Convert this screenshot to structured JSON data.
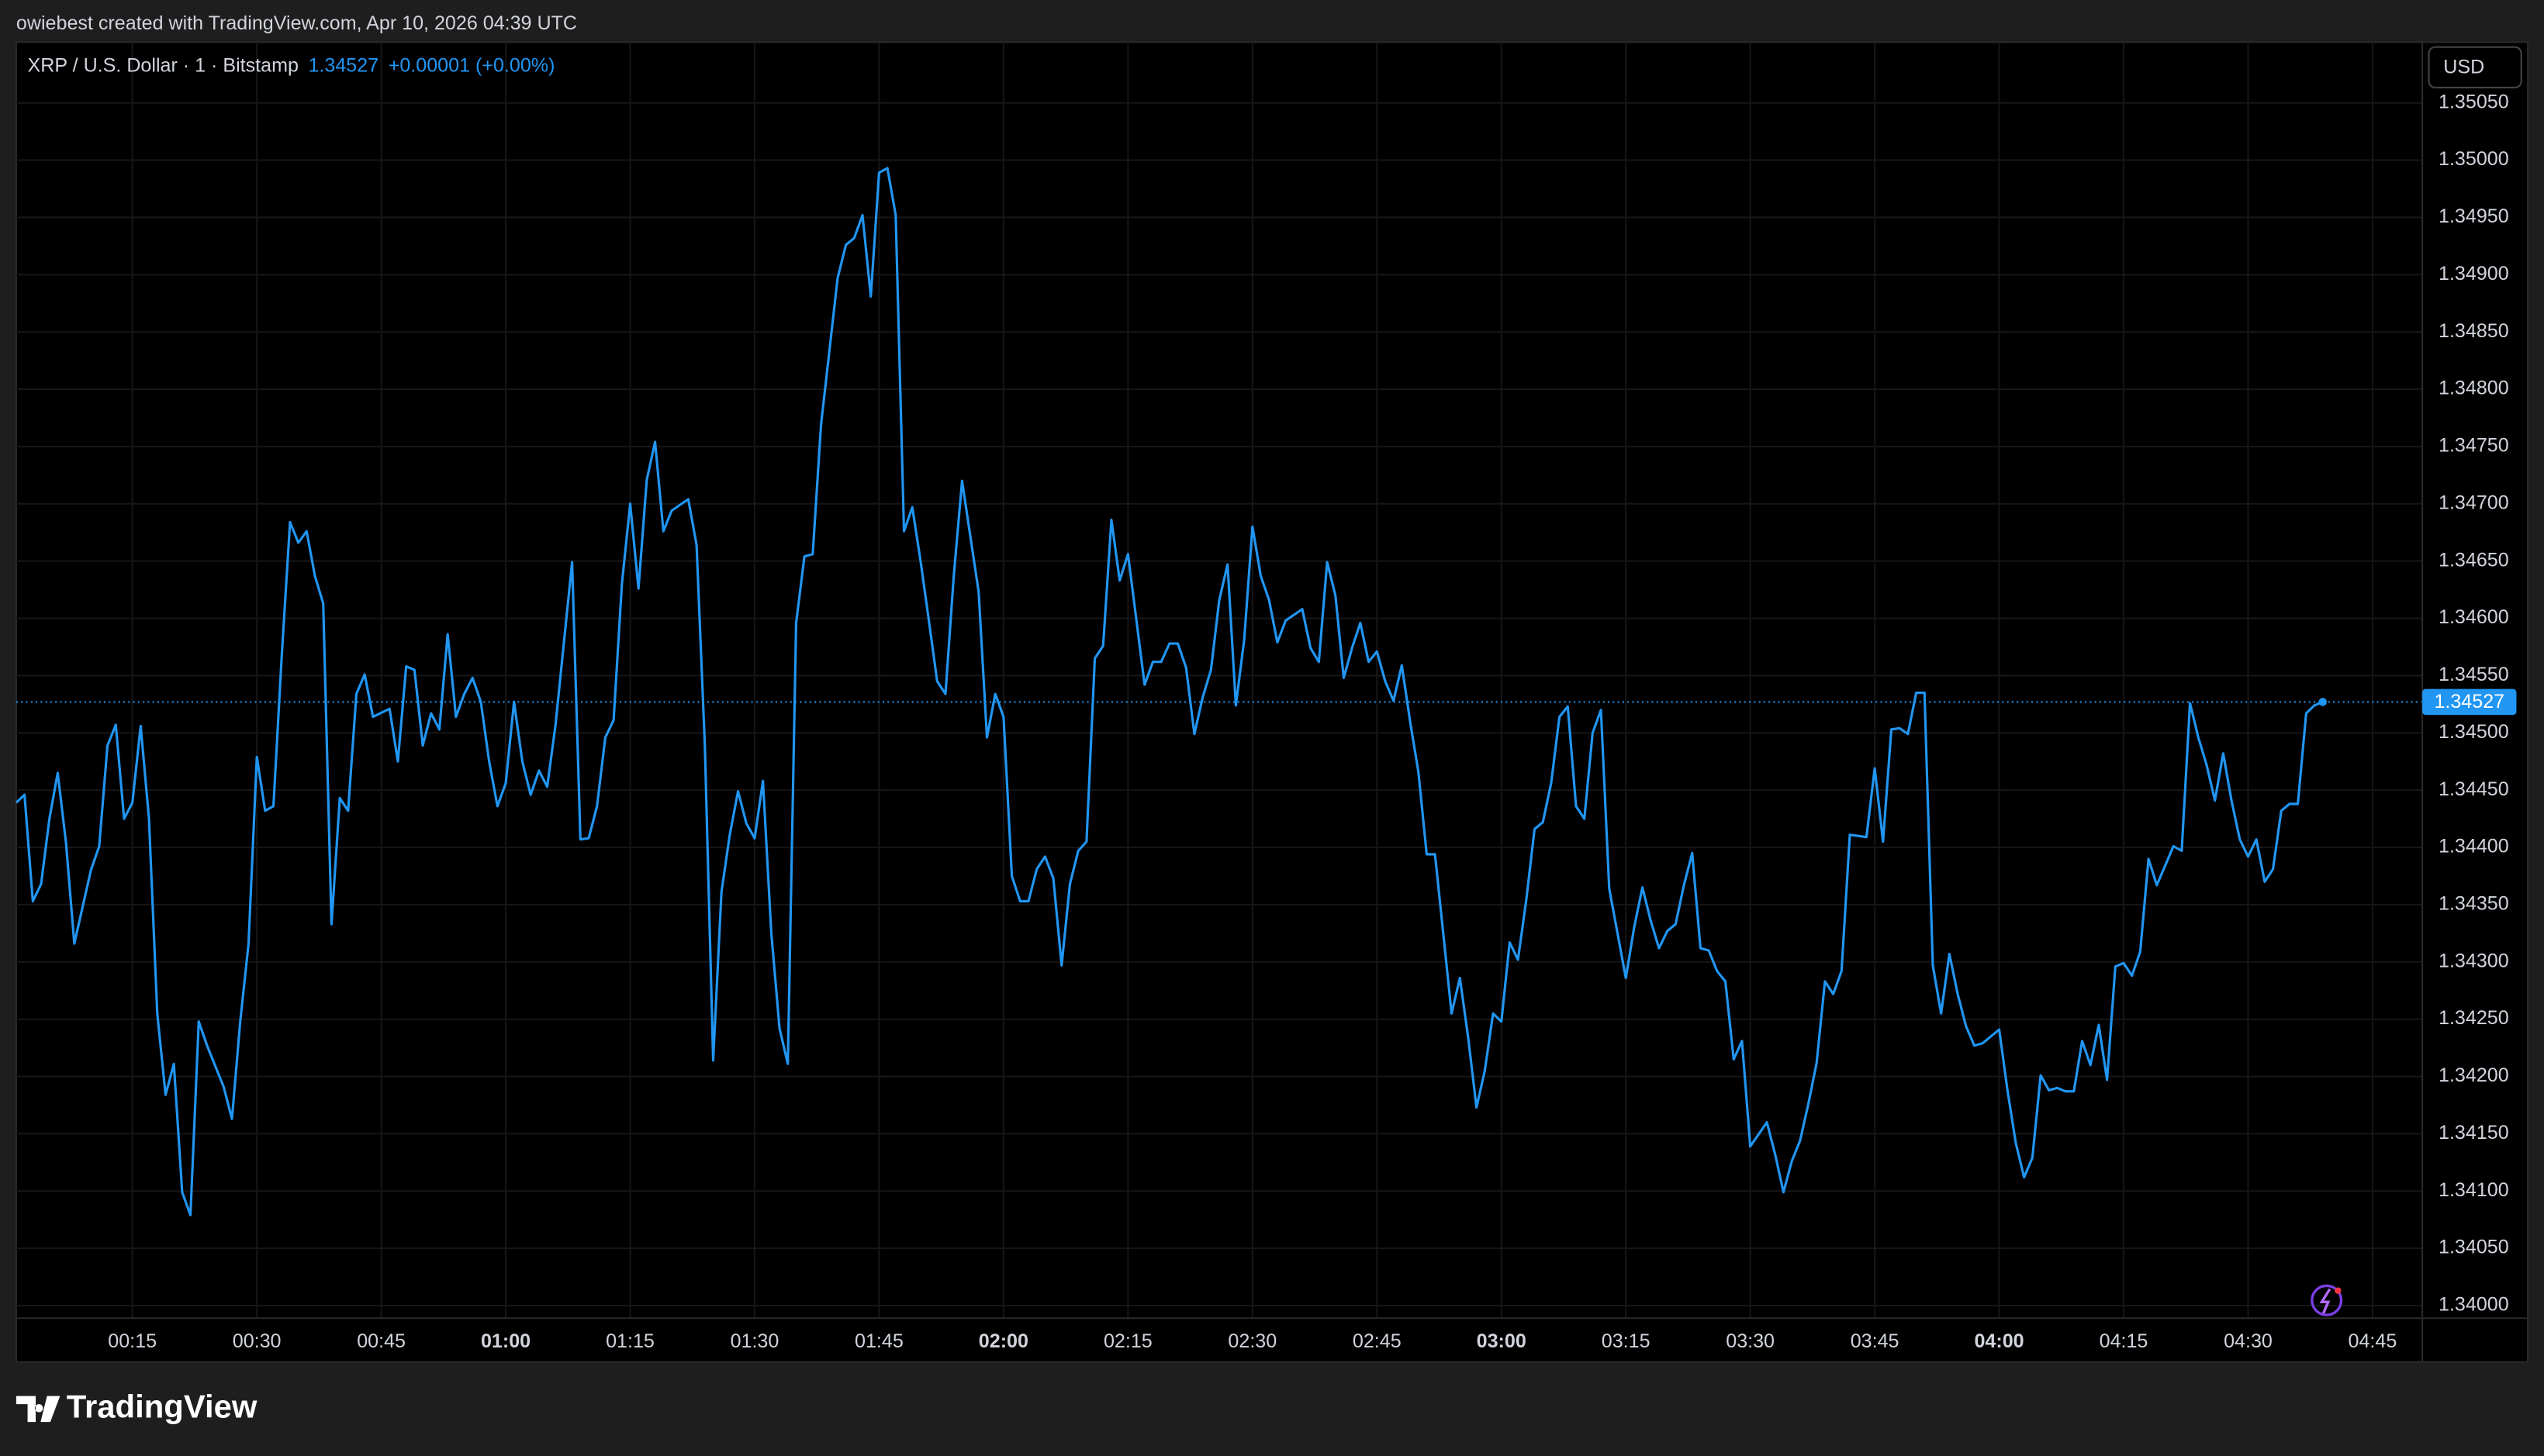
{
  "chart_data": {
    "type": "line",
    "caption": "owiebest created with TradingView.com, Apr 10, 2026 04:39 UTC",
    "currency": "USD",
    "change": "+0.00001 (+0.00%)",
    "brand": "TradingView",
    "grid": true,
    "xlim": [
      "00:01",
      "04:51"
    ],
    "xticks": [
      "00:15",
      "00:30",
      "00:45",
      "01:00",
      "01:15",
      "01:30",
      "01:45",
      "02:00",
      "02:15",
      "02:30",
      "02:45",
      "03:00",
      "03:15",
      "03:30",
      "03:45",
      "04:00",
      "04:15",
      "04:30",
      "04:45"
    ],
    "ylim": [
      1.33989,
      1.35103
    ],
    "yticks": [
      {
        "value": 1.34,
        "label": "1.34000"
      },
      {
        "value": 1.3405,
        "label": "1.34050"
      },
      {
        "value": 1.341,
        "label": "1.34100"
      },
      {
        "value": 1.3415,
        "label": "1.34150"
      },
      {
        "value": 1.342,
        "label": "1.34200"
      },
      {
        "value": 1.3425,
        "label": "1.34250"
      },
      {
        "value": 1.343,
        "label": "1.34300"
      },
      {
        "value": 1.3435,
        "label": "1.34350"
      },
      {
        "value": 1.344,
        "label": "1.34400"
      },
      {
        "value": 1.3445,
        "label": "1.34450"
      },
      {
        "value": 1.345,
        "label": "1.34500"
      },
      {
        "value": 1.3455,
        "label": "1.34550"
      },
      {
        "value": 1.346,
        "label": "1.34600"
      },
      {
        "value": 1.3465,
        "label": "1.34650"
      },
      {
        "value": 1.347,
        "label": "1.34700"
      },
      {
        "value": 1.3475,
        "label": "1.34750"
      },
      {
        "value": 1.348,
        "label": "1.34800"
      },
      {
        "value": 1.3485,
        "label": "1.34850"
      },
      {
        "value": 1.349,
        "label": "1.34900"
      },
      {
        "value": 1.3495,
        "label": "1.34950"
      },
      {
        "value": 1.35,
        "label": "1.35000"
      },
      {
        "value": 1.3505,
        "label": "1.35050"
      }
    ],
    "x": [
      "00:01",
      "00:02",
      "00:03",
      "00:04",
      "00:05",
      "00:06",
      "00:07",
      "00:08",
      "00:10",
      "00:11",
      "00:12",
      "00:13",
      "00:14",
      "00:15",
      "00:16",
      "00:17",
      "00:18",
      "00:19",
      "00:20",
      "00:21",
      "00:22",
      "00:23",
      "00:24",
      "00:26",
      "00:27",
      "00:28",
      "00:29",
      "00:30",
      "00:31",
      "00:32",
      "00:33",
      "00:34",
      "00:35",
      "00:36",
      "00:37",
      "00:38",
      "00:39",
      "00:40",
      "00:41",
      "00:42",
      "00:43",
      "00:44",
      "00:46",
      "00:47",
      "00:48",
      "00:49",
      "00:50",
      "00:51",
      "00:52",
      "00:53",
      "00:54",
      "00:55",
      "00:56",
      "00:57",
      "00:58",
      "00:59",
      "01:00",
      "01:01",
      "01:02",
      "01:03",
      "01:04",
      "01:05",
      "01:06",
      "01:08",
      "01:09",
      "01:10",
      "01:11",
      "01:12",
      "01:13",
      "01:14",
      "01:15",
      "01:16",
      "01:17",
      "01:18",
      "01:19",
      "01:20",
      "01:22",
      "01:23",
      "01:24",
      "01:25",
      "01:26",
      "01:27",
      "01:28",
      "01:29",
      "01:30",
      "01:31",
      "01:32",
      "01:33",
      "01:34",
      "01:35",
      "01:36",
      "01:37",
      "01:38",
      "01:40",
      "01:41",
      "01:42",
      "01:43",
      "01:44",
      "01:45",
      "01:46",
      "01:47",
      "01:48",
      "01:49",
      "01:50",
      "01:51",
      "01:52",
      "01:53",
      "01:54",
      "01:55",
      "01:57",
      "01:58",
      "01:59",
      "02:00",
      "02:01",
      "02:02",
      "02:03",
      "02:04",
      "02:05",
      "02:06",
      "02:07",
      "02:08",
      "02:09",
      "02:10",
      "02:11",
      "02:12",
      "02:13",
      "02:14",
      "02:15",
      "02:17",
      "02:18",
      "02:19",
      "02:20",
      "02:21",
      "02:22",
      "02:23",
      "02:24",
      "02:25",
      "02:26",
      "02:27",
      "02:28",
      "02:29",
      "02:30",
      "02:31",
      "02:32",
      "02:33",
      "02:34",
      "02:36",
      "02:37",
      "02:38",
      "02:39",
      "02:40",
      "02:41",
      "02:42",
      "02:43",
      "02:44",
      "02:45",
      "02:46",
      "02:47",
      "02:48",
      "02:49",
      "02:50",
      "02:51",
      "02:52",
      "02:54",
      "02:55",
      "02:56",
      "02:57",
      "02:58",
      "02:59",
      "03:00",
      "03:01",
      "03:02",
      "03:03",
      "03:04",
      "03:05",
      "03:06",
      "03:07",
      "03:08",
      "03:09",
      "03:10",
      "03:11",
      "03:12",
      "03:13",
      "03:15",
      "03:16",
      "03:17",
      "03:18",
      "03:19",
      "03:20",
      "03:21",
      "03:22",
      "03:23",
      "03:24",
      "03:25",
      "03:26",
      "03:27",
      "03:28",
      "03:29",
      "03:30",
      "03:32",
      "03:33",
      "03:34",
      "03:35",
      "03:36",
      "03:37",
      "03:38",
      "03:39",
      "03:40",
      "03:41",
      "03:42",
      "03:44",
      "03:45",
      "03:46",
      "03:47",
      "03:48",
      "03:49",
      "03:50",
      "03:51",
      "03:52",
      "03:53",
      "03:54",
      "03:55",
      "03:56",
      "03:57",
      "03:58",
      "04:00",
      "04:01",
      "04:02",
      "04:03",
      "04:04",
      "04:05",
      "04:06",
      "04:07",
      "04:08",
      "04:09",
      "04:10",
      "04:11",
      "04:12",
      "04:13",
      "04:14",
      "04:15",
      "04:16",
      "04:17",
      "04:18",
      "04:19",
      "04:21",
      "04:22",
      "04:23",
      "04:24",
      "04:25",
      "04:26",
      "04:27",
      "04:28",
      "04:29",
      "04:30",
      "04:31",
      "04:32",
      "04:33",
      "04:34",
      "04:35",
      "04:36",
      "04:37",
      "04:38",
      "04:39"
    ],
    "series": [
      {
        "name": "XRP / U.S. Dollar · 1 · Bitstamp",
        "color": "#2196f3",
        "values": [
          1.34439,
          1.34446,
          1.34353,
          1.34368,
          1.34425,
          1.34465,
          1.34404,
          1.34316,
          1.3438,
          1.34401,
          1.34489,
          1.34507,
          1.34425,
          1.34439,
          1.34506,
          1.34425,
          1.34255,
          1.34184,
          1.34211,
          1.34099,
          1.34079,
          1.34248,
          1.34227,
          1.34191,
          1.34163,
          1.34248,
          1.34316,
          1.34479,
          1.34432,
          1.34436,
          1.34567,
          1.34684,
          1.34666,
          1.34676,
          1.34637,
          1.34613,
          1.34333,
          1.34443,
          1.34432,
          1.34534,
          1.34551,
          1.34514,
          1.34521,
          1.34475,
          1.34558,
          1.34555,
          1.34489,
          1.34517,
          1.34503,
          1.34586,
          1.34514,
          1.34534,
          1.34548,
          1.34527,
          1.34475,
          1.34436,
          1.34456,
          1.34527,
          1.34475,
          1.34446,
          1.34467,
          1.34453,
          1.34507,
          1.34649,
          1.34407,
          1.34408,
          1.34436,
          1.34496,
          1.34511,
          1.3463,
          1.347,
          1.34626,
          1.34721,
          1.34754,
          1.34676,
          1.34694,
          1.34704,
          1.34664,
          1.34489,
          1.34214,
          1.34361,
          1.34411,
          1.34449,
          1.34421,
          1.34408,
          1.34458,
          1.34326,
          1.34242,
          1.34211,
          1.34596,
          1.34654,
          1.34656,
          1.34769,
          1.34897,
          1.34926,
          1.34932,
          1.34952,
          1.34881,
          1.34989,
          1.34993,
          1.34952,
          1.34676,
          1.34697,
          1.3465,
          1.34598,
          1.34545,
          1.34534,
          1.34637,
          1.3472,
          1.34623,
          1.34496,
          1.34534,
          1.34514,
          1.34375,
          1.34353,
          1.34353,
          1.34381,
          1.34392,
          1.34373,
          1.34297,
          1.34368,
          1.34397,
          1.34405,
          1.34565,
          1.34576,
          1.34686,
          1.34633,
          1.34656,
          1.34542,
          1.34562,
          1.34562,
          1.34578,
          1.34578,
          1.34557,
          1.34499,
          1.34531,
          1.34555,
          1.34616,
          1.34647,
          1.34524,
          1.34581,
          1.3468,
          1.34637,
          1.34616,
          1.34579,
          1.34598,
          1.34608,
          1.34574,
          1.34562,
          1.34649,
          1.3462,
          1.34548,
          1.34574,
          1.34596,
          1.34562,
          1.34571,
          1.34545,
          1.34528,
          1.34559,
          1.3451,
          1.34466,
          1.34394,
          1.34394,
          1.34255,
          1.34286,
          1.34234,
          1.34173,
          1.34205,
          1.34255,
          1.34248,
          1.34317,
          1.34302,
          1.34354,
          1.34416,
          1.34422,
          1.34456,
          1.34514,
          1.34523,
          1.34436,
          1.34425,
          1.345,
          1.3452,
          1.34364,
          1.34286,
          1.3433,
          1.34365,
          1.34336,
          1.34312,
          1.34327,
          1.34333,
          1.34367,
          1.34395,
          1.34312,
          1.3431,
          1.34292,
          1.34283,
          1.34215,
          1.34231,
          1.34139,
          1.3416,
          1.34132,
          1.34099,
          1.34126,
          1.34144,
          1.34176,
          1.34212,
          1.34283,
          1.34272,
          1.34292,
          1.34411,
          1.34409,
          1.34469,
          1.34405,
          1.34503,
          1.34504,
          1.34499,
          1.34535,
          1.34535,
          1.34297,
          1.34255,
          1.34307,
          1.34272,
          1.34244,
          1.34227,
          1.34229,
          1.34241,
          1.34188,
          1.34142,
          1.34112,
          1.34129,
          1.34201,
          1.34188,
          1.3419,
          1.34187,
          1.34187,
          1.34231,
          1.3421,
          1.34245,
          1.34197,
          1.34296,
          1.34299,
          1.34288,
          1.34309,
          1.3439,
          1.34367,
          1.34401,
          1.34397,
          1.34526,
          1.34496,
          1.34472,
          1.34441,
          1.34482,
          1.34441,
          1.34407,
          1.34392,
          1.34407,
          1.3437,
          1.34381,
          1.34432,
          1.34438,
          1.34438,
          1.34517,
          1.34524,
          1.34527
        ]
      }
    ]
  }
}
